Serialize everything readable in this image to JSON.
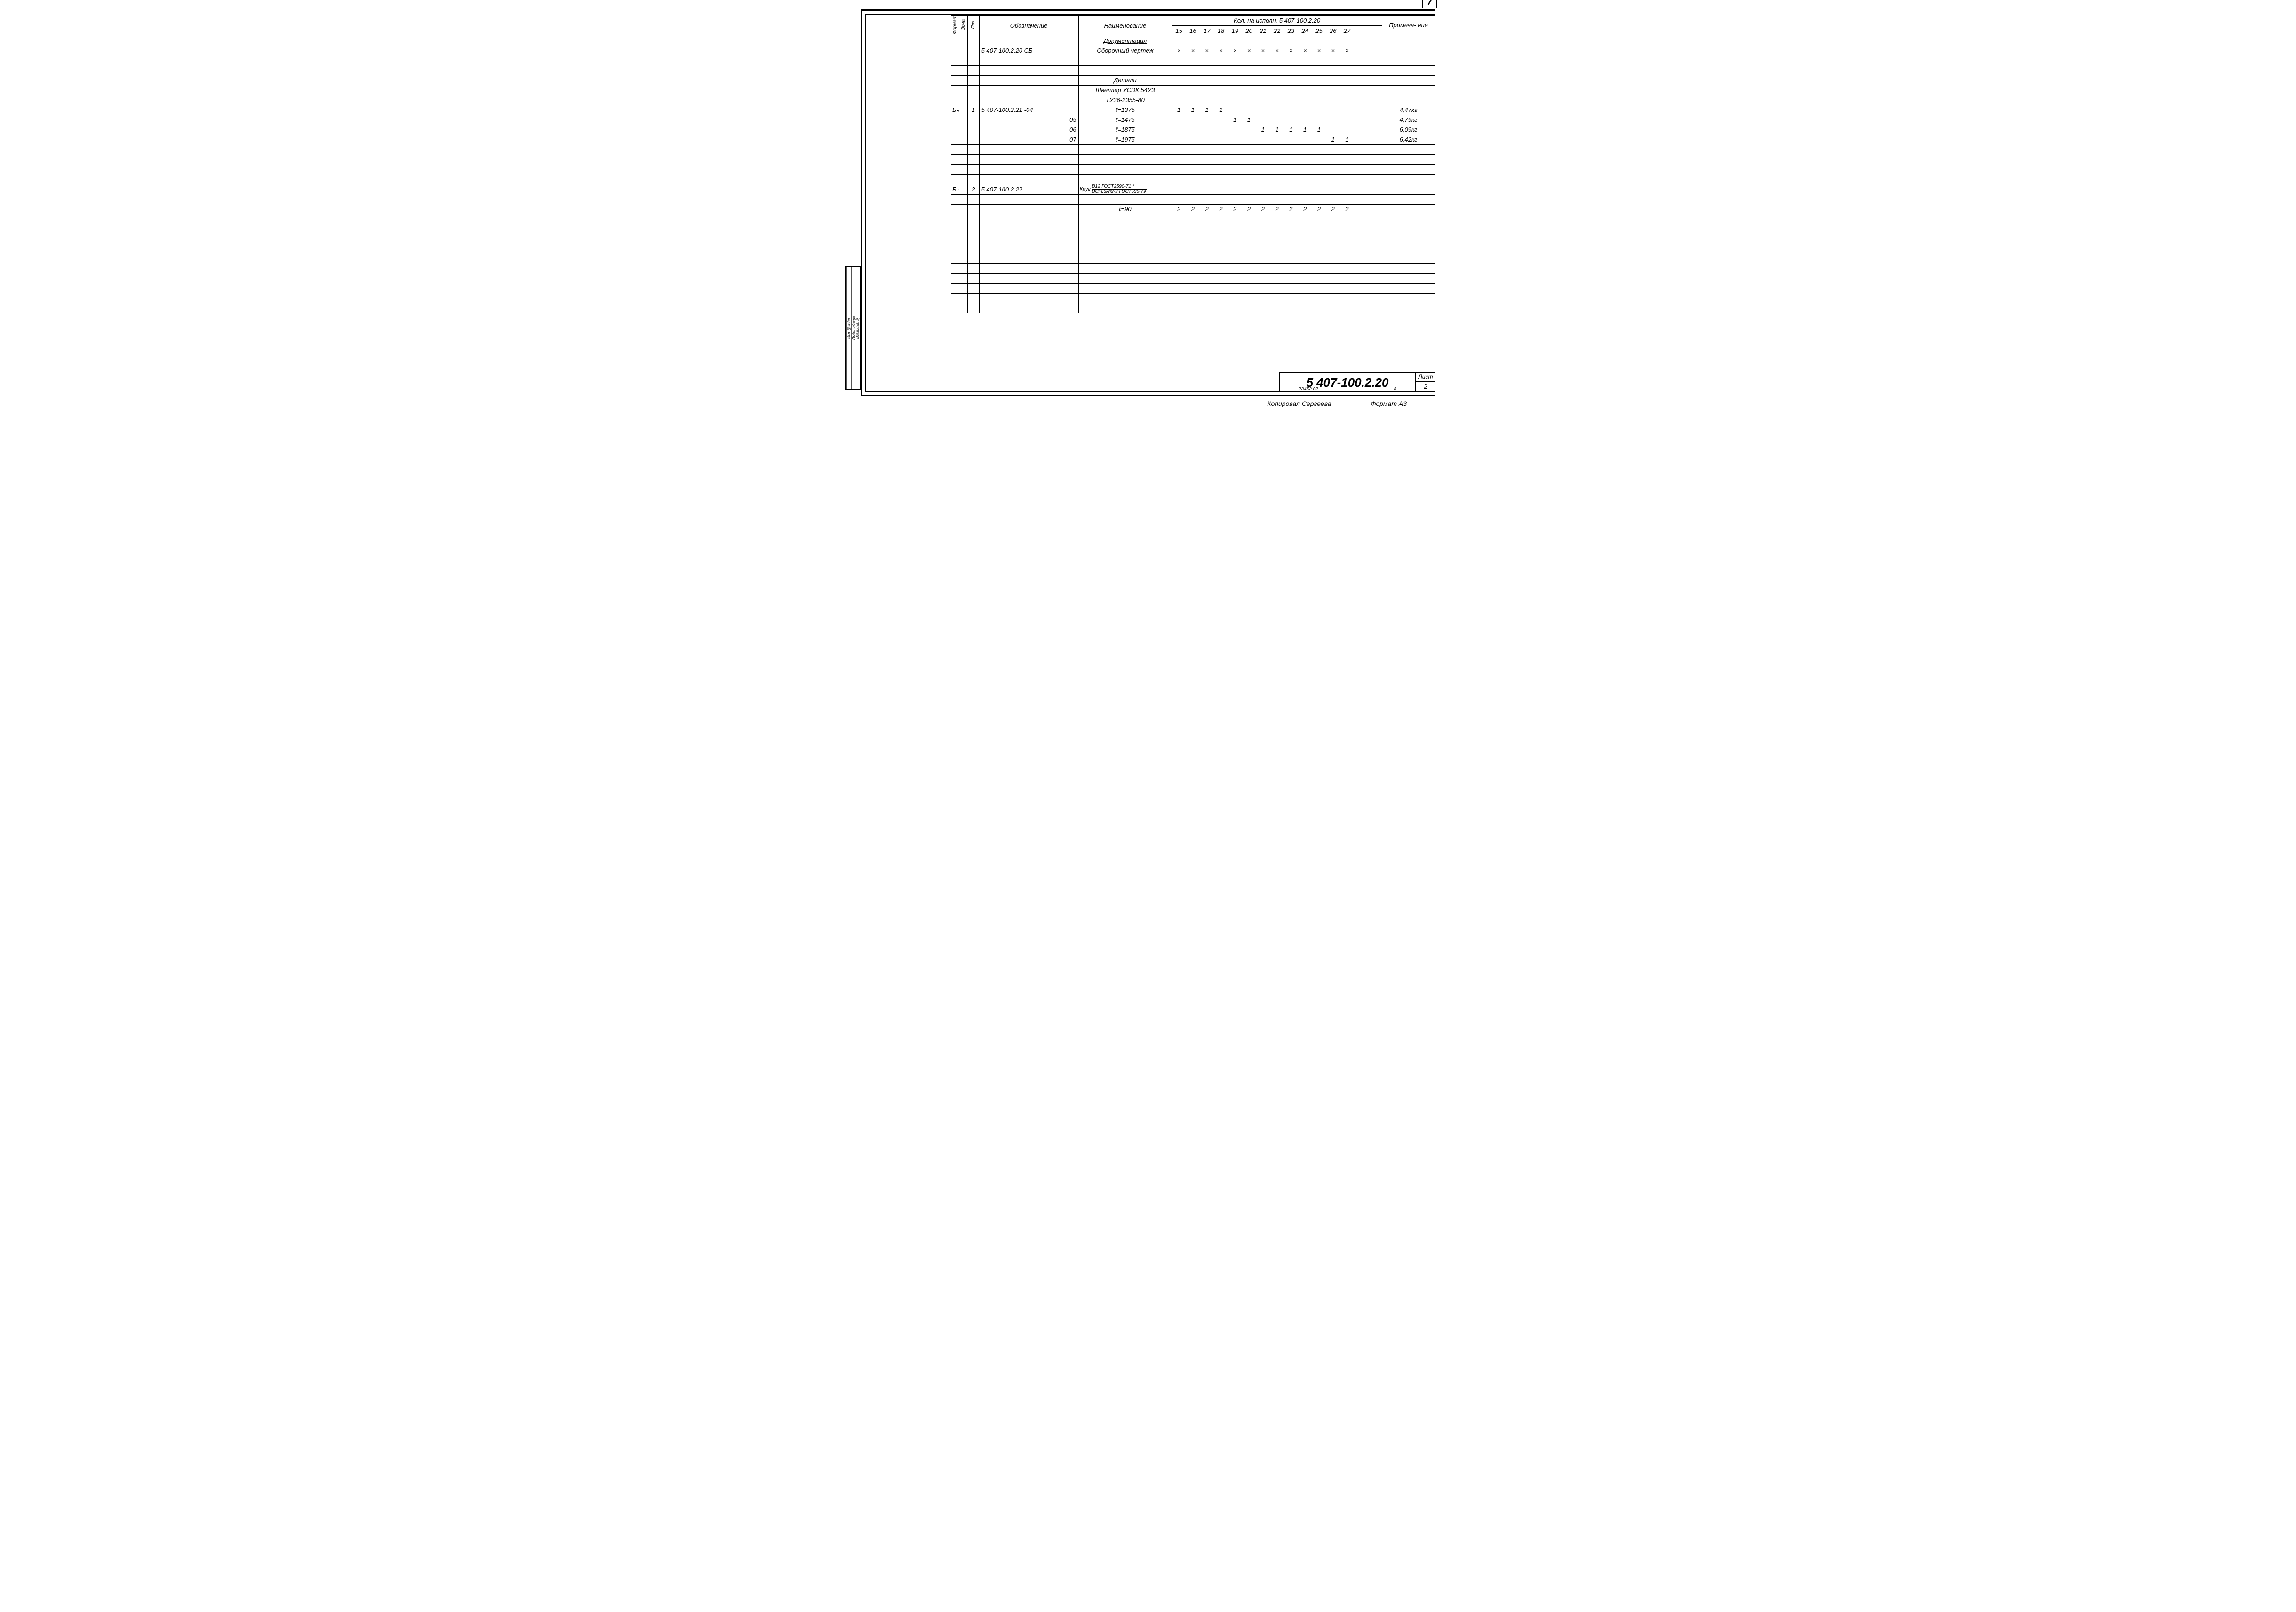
{
  "page_corner_number": "7",
  "headers": {
    "format": "Формат",
    "zone": "Зона",
    "pos": "Поз",
    "designation": "Обозначение",
    "name": "Наименование",
    "qty_group_title": "Кол. на исполн. 5 407-100.2.20",
    "note": "Примеча-\nние",
    "qty_cols": [
      "15",
      "16",
      "17",
      "18",
      "19",
      "20",
      "21",
      "22",
      "23",
      "24",
      "25",
      "26",
      "27",
      "",
      ""
    ]
  },
  "side_labels": [
    "Инв.№подл.",
    "Подп. и дата",
    "Взам.инв.№"
  ],
  "section_doc": "Документация",
  "section_det": "Детали",
  "rows": [
    {
      "fmt": "",
      "zone": "",
      "pos": "",
      "desg": "5 407-100.2.20 СБ",
      "name": "Сборочный чертеж",
      "q": [
        "×",
        "×",
        "×",
        "×",
        "×",
        "×",
        "×",
        "×",
        "×",
        "×",
        "×",
        "×",
        "×",
        "",
        ""
      ],
      "note": ""
    },
    {
      "blank": true
    },
    {
      "blank": true
    },
    {
      "fmt": "",
      "zone": "",
      "pos": "",
      "desg": "",
      "name": "Швеллер УСЭК 54У3",
      "q": [
        "",
        "",
        "",
        "",
        "",
        "",
        "",
        "",
        "",
        "",
        "",
        "",
        "",
        "",
        ""
      ],
      "note": ""
    },
    {
      "fmt": "",
      "zone": "",
      "pos": "",
      "desg": "",
      "name": "ТУ36-2355-80",
      "q": [
        "",
        "",
        "",
        "",
        "",
        "",
        "",
        "",
        "",
        "",
        "",
        "",
        "",
        "",
        ""
      ],
      "note": ""
    },
    {
      "fmt": "БЧ",
      "zone": "",
      "pos": "1",
      "desg": "5 407-100.2.21      -04",
      "name": "ℓ=1375",
      "q": [
        "1",
        "1",
        "1",
        "1",
        "",
        "",
        "",
        "",
        "",
        "",
        "",
        "",
        "",
        "",
        ""
      ],
      "note": "4,47кг"
    },
    {
      "fmt": "",
      "zone": "",
      "pos": "",
      "desg": "-05",
      "name": "ℓ=1475",
      "q": [
        "",
        "",
        "",
        "",
        "1",
        "1",
        "",
        "",
        "",
        "",
        "",
        "",
        "",
        "",
        ""
      ],
      "note": "4,79кг"
    },
    {
      "fmt": "",
      "zone": "",
      "pos": "",
      "desg": "-06",
      "name": "ℓ=1875",
      "q": [
        "",
        "",
        "",
        "",
        "",
        "",
        "1",
        "1",
        "1",
        "1",
        "1",
        "",
        "",
        "",
        ""
      ],
      "note": "6,09кг"
    },
    {
      "fmt": "",
      "zone": "",
      "pos": "",
      "desg": "-07",
      "name": "ℓ=1975",
      "q": [
        "",
        "",
        "",
        "",
        "",
        "",
        "",
        "",
        "",
        "",
        "",
        "1",
        "1",
        "",
        ""
      ],
      "note": "6,42кг"
    },
    {
      "blank": true
    },
    {
      "blank": true
    },
    {
      "blank": true
    },
    {
      "blank": true
    },
    {
      "fmt": "БЧ",
      "zone": "",
      "pos": "2",
      "desg": "5 407-100.2.22",
      "name_frac": {
        "label": "Круг",
        "top": "В12  ГОСТ2590-71 *",
        "bot": "ВСт.3кп2-II ГОСТ535-79"
      },
      "q": [
        "",
        "",
        "",
        "",
        "",
        "",
        "",
        "",
        "",
        "",
        "",
        "",
        "",
        "",
        ""
      ],
      "note": ""
    },
    {
      "blank": true
    },
    {
      "fmt": "",
      "zone": "",
      "pos": "",
      "desg": "",
      "name": "ℓ=90",
      "q": [
        "2",
        "2",
        "2",
        "2",
        "2",
        "2",
        "2",
        "2",
        "2",
        "2",
        "2",
        "2",
        "2",
        "",
        ""
      ],
      "note": ""
    },
    {
      "blank": true
    },
    {
      "blank": true
    },
    {
      "blank": true
    },
    {
      "blank": true
    },
    {
      "blank": true
    },
    {
      "blank": true
    },
    {
      "blank": true
    },
    {
      "blank": true
    },
    {
      "blank": true
    },
    {
      "blank": true
    }
  ],
  "titleblock": {
    "drawing_no": "5 407-100.2.20",
    "sub_left": "23452 02",
    "sub_right": "8",
    "sheet_label": "Лист",
    "sheet_no": "2"
  },
  "footer": {
    "copied_by": "Копировал Сергеева",
    "format": "Формат А3"
  }
}
